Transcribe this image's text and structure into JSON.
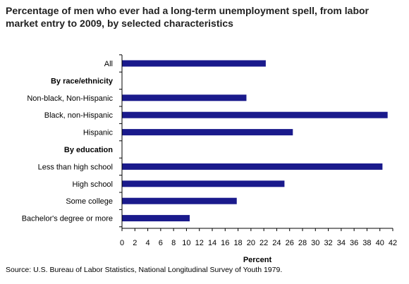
{
  "title": "Percentage of men who ever had a long-term unemployment spell, from labor market entry to 2009, by selected characteristics",
  "source": "Source:  U.S. Bureau of Labor Statistics, National Longitudinal Survey of Youth 1979.",
  "colors": {
    "bar": "#1a1a8c",
    "axis": "#000000"
  },
  "chart_data": {
    "type": "bar",
    "orientation": "horizontal",
    "categories": [
      "All",
      "By race/ethnicity",
      "Non-black, Non-Hispanic",
      "Black, non-Hispanic",
      "Hispanic",
      "By education",
      "Less than high school",
      "High school",
      "Some college",
      "Bachelor's degree or more"
    ],
    "header_rows": [
      "By race/ethnicity",
      "By education"
    ],
    "values": [
      22.3,
      null,
      19.3,
      41.2,
      26.5,
      null,
      40.4,
      25.2,
      17.8,
      10.5
    ],
    "xlabel": "Percent",
    "ylabel": "",
    "xlim": [
      0,
      42
    ],
    "xticks": [
      0,
      2,
      4,
      6,
      8,
      10,
      12,
      14,
      16,
      18,
      20,
      22,
      24,
      26,
      28,
      30,
      32,
      34,
      36,
      38,
      40,
      42
    ],
    "grid": false,
    "legend": "none"
  }
}
